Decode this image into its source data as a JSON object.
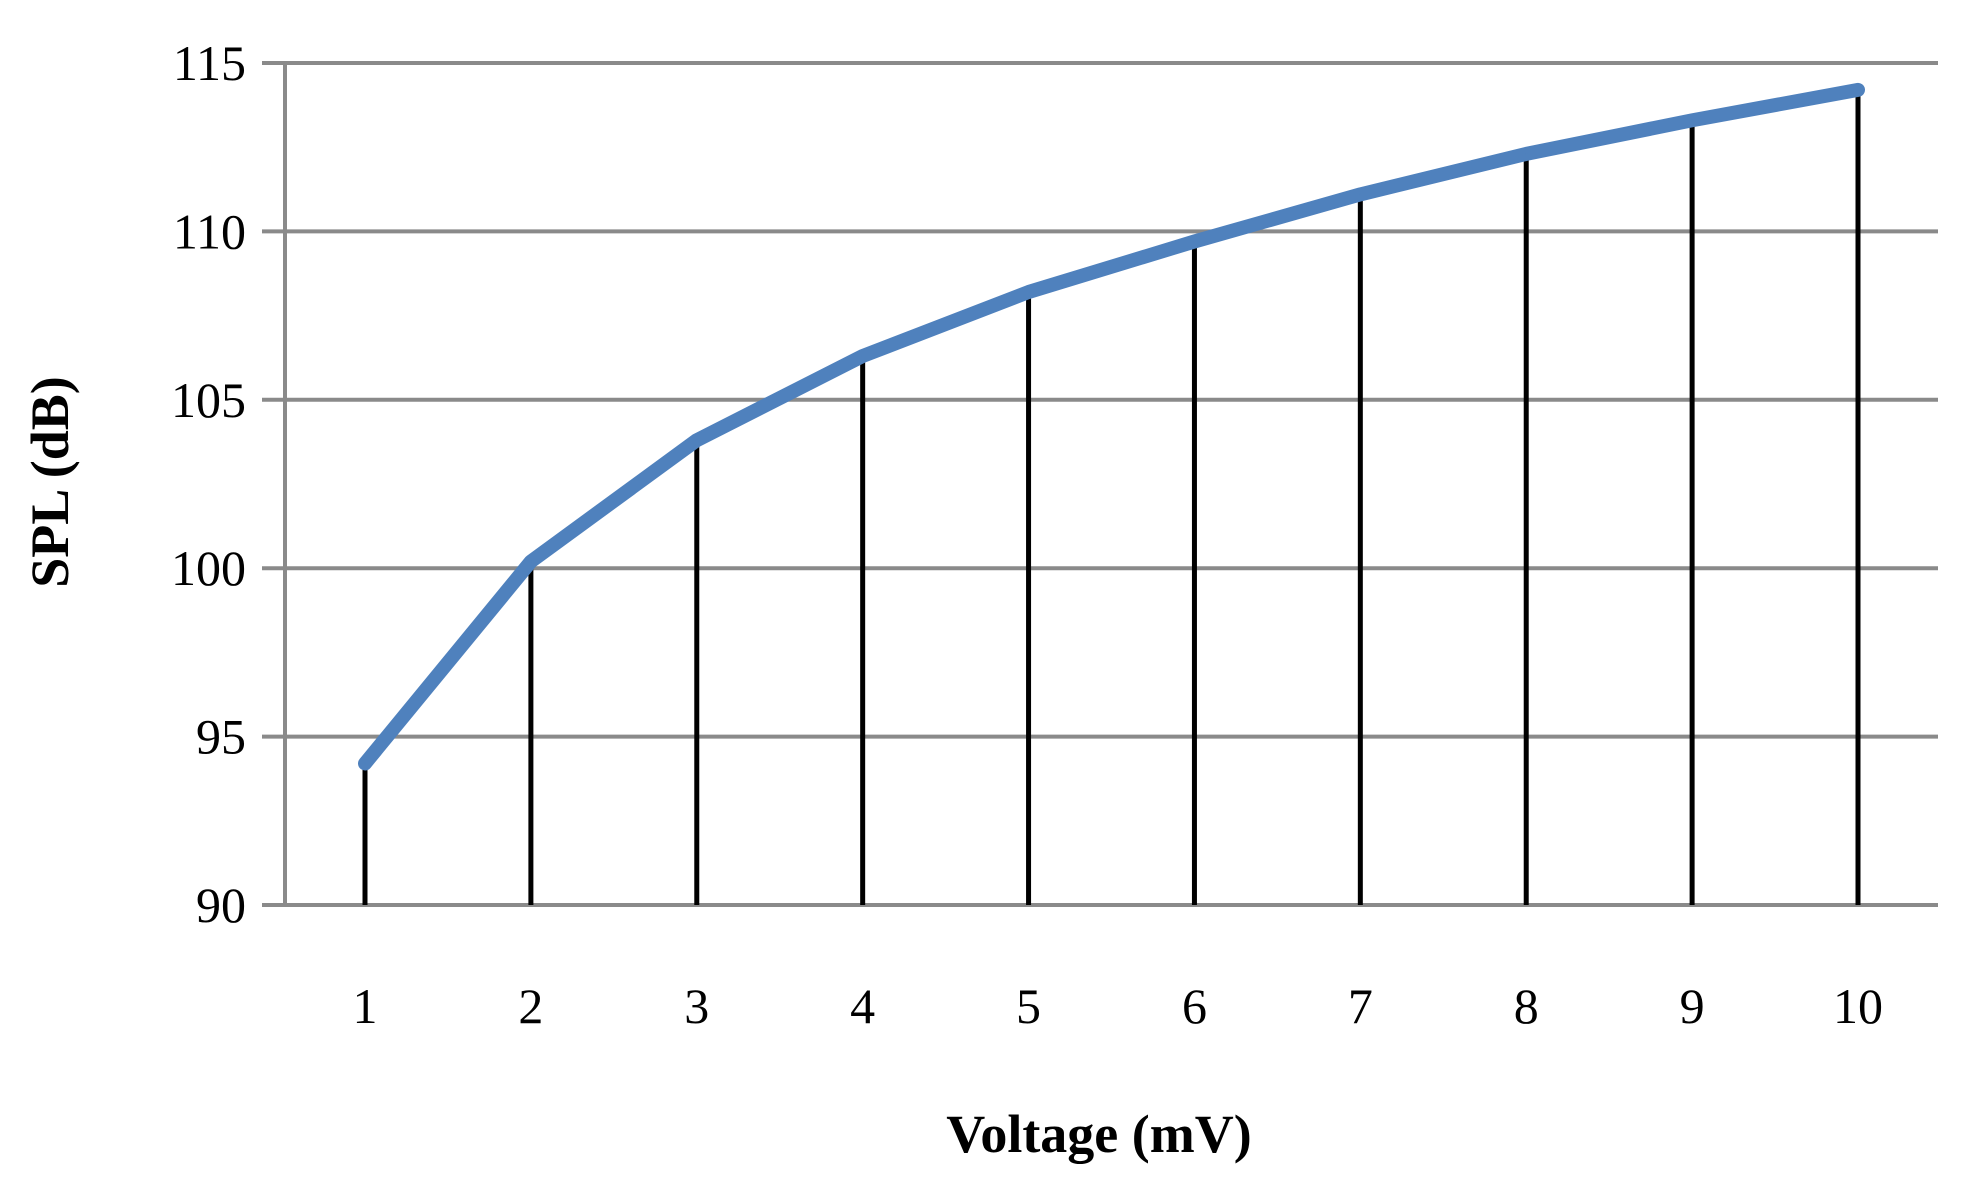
{
  "chart_data": {
    "type": "line",
    "xlabel": "Voltage (mV)",
    "ylabel": "SPL (dB)",
    "x": [
      1,
      2,
      3,
      4,
      5,
      6,
      7,
      8,
      9,
      10
    ],
    "series": [
      {
        "values": [
          94.2,
          100.2,
          103.8,
          106.3,
          108.2,
          109.7,
          111.1,
          112.3,
          113.3,
          114.2
        ]
      }
    ],
    "ylim": [
      90,
      115
    ],
    "y_ticks": [
      90,
      95,
      100,
      105,
      110,
      115
    ],
    "x_ticks": [
      "1",
      "2",
      "3",
      "4",
      "5",
      "6",
      "7",
      "8",
      "9",
      "10"
    ],
    "grid": "horizontal",
    "drop_lines": true,
    "legend": "none",
    "colors": {
      "line": "#4f81bd",
      "drop_lines": "#000000",
      "grid": "#8a8a8a"
    }
  }
}
